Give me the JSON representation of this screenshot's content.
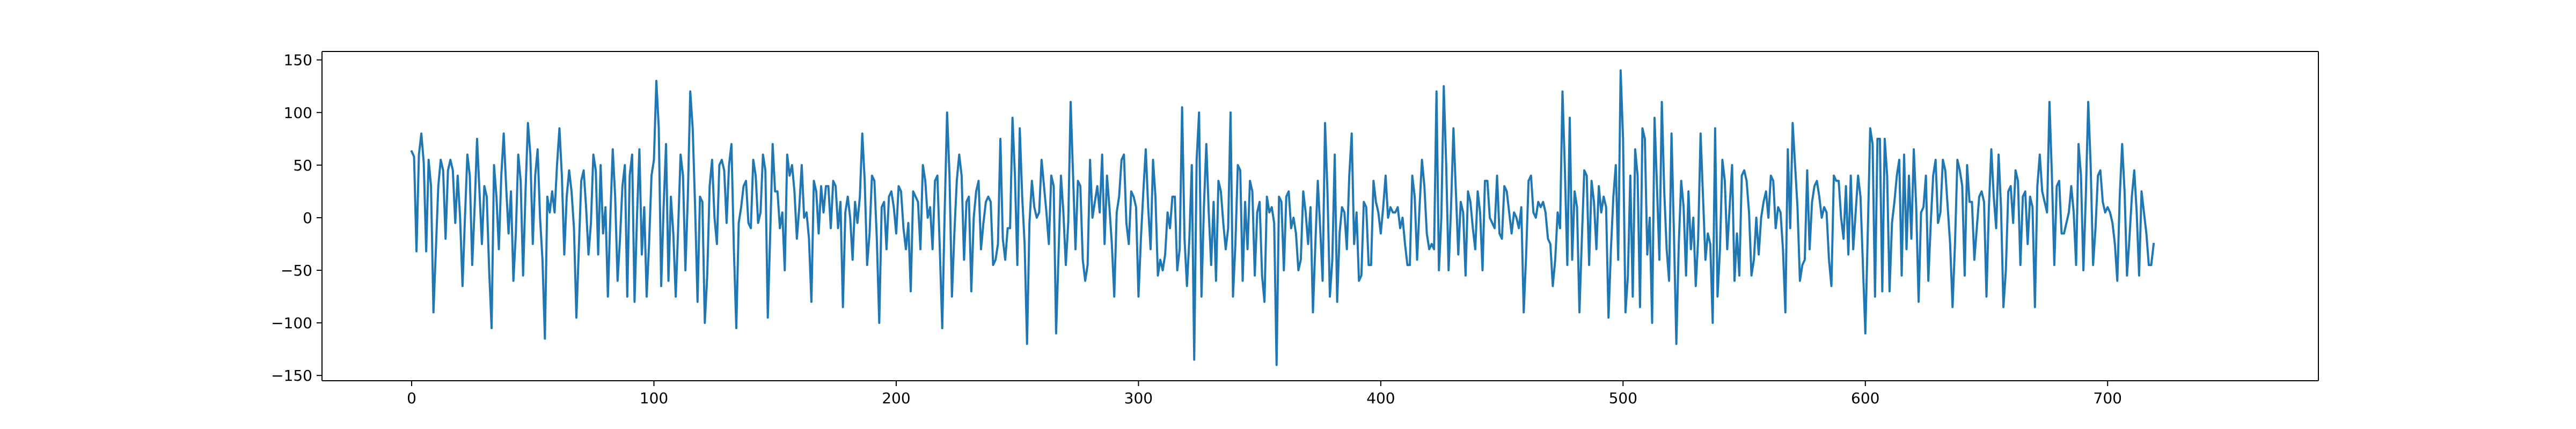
{
  "chart_data": {
    "type": "line",
    "title": "",
    "xlabel": "",
    "ylabel": "",
    "xlim": [
      -37,
      787
    ],
    "ylim": [
      -155,
      158
    ],
    "x_ticks": [
      0,
      100,
      200,
      300,
      400,
      500,
      600,
      700
    ],
    "x_tick_labels": [
      "0",
      "100",
      "200",
      "300",
      "400",
      "500",
      "600",
      "700"
    ],
    "y_ticks": [
      -150,
      -100,
      -50,
      0,
      50,
      100,
      150
    ],
    "y_tick_labels": [
      "−150",
      "−100",
      "−50",
      "0",
      "50",
      "100",
      "150"
    ],
    "grid": false,
    "legend": "none",
    "series": [
      {
        "color": "#1f77b4",
        "x_start": 0,
        "x_step": 1,
        "y": [
          63,
          58,
          -32,
          60,
          80,
          52,
          -32,
          55,
          30,
          -90,
          -30,
          30,
          55,
          45,
          -20,
          45,
          55,
          45,
          -5,
          40,
          0,
          -65,
          0,
          60,
          40,
          -45,
          10,
          75,
          25,
          -25,
          30,
          20,
          -50,
          -105,
          50,
          20,
          -30,
          40,
          80,
          30,
          -15,
          25,
          -60,
          -15,
          60,
          35,
          -55,
          25,
          90,
          60,
          -25,
          40,
          65,
          0,
          -40,
          -115,
          20,
          5,
          25,
          5,
          50,
          85,
          40,
          -35,
          20,
          45,
          25,
          -10,
          -95,
          -30,
          35,
          45,
          10,
          -35,
          -5,
          60,
          45,
          -35,
          50,
          -15,
          10,
          -75,
          0,
          65,
          20,
          -60,
          -20,
          30,
          50,
          -75,
          40,
          60,
          -80,
          0,
          65,
          -35,
          10,
          -75,
          -25,
          40,
          55,
          130,
          85,
          -65,
          10,
          70,
          -60,
          20,
          -15,
          -75,
          -10,
          60,
          40,
          -50,
          20,
          120,
          85,
          10,
          -80,
          20,
          15,
          -100,
          -55,
          30,
          55,
          0,
          -25,
          50,
          55,
          45,
          -5,
          50,
          70,
          -30,
          -105,
          -5,
          10,
          30,
          35,
          -5,
          -10,
          55,
          40,
          -5,
          5,
          60,
          45,
          -95,
          -15,
          70,
          25,
          25,
          -10,
          5,
          -50,
          60,
          40,
          50,
          25,
          -20,
          10,
          50,
          0,
          5,
          -20,
          -80,
          35,
          25,
          -15,
          30,
          5,
          30,
          30,
          -10,
          35,
          30,
          -10,
          15,
          -85,
          5,
          20,
          0,
          -40,
          15,
          -5,
          20,
          80,
          35,
          -45,
          -15,
          40,
          35,
          -20,
          -100,
          10,
          15,
          -30,
          20,
          25,
          10,
          -15,
          30,
          25,
          -10,
          -30,
          -5,
          -70,
          25,
          20,
          15,
          -30,
          50,
          35,
          0,
          10,
          -30,
          35,
          40,
          -30,
          -105,
          5,
          100,
          40,
          -75,
          -15,
          35,
          60,
          40,
          -40,
          15,
          20,
          -70,
          0,
          25,
          35,
          -30,
          -5,
          15,
          20,
          15,
          -45,
          -40,
          -25,
          75,
          -20,
          -40,
          -10,
          -10,
          95,
          40,
          -45,
          85,
          20,
          -25,
          -120,
          -5,
          35,
          10,
          0,
          5,
          55,
          30,
          5,
          -25,
          40,
          30,
          -110,
          -35,
          40,
          5,
          -45,
          -5,
          110,
          40,
          -30,
          35,
          30,
          -40,
          -60,
          -45,
          55,
          0,
          15,
          30,
          5,
          60,
          -25,
          40,
          10,
          -25,
          -75,
          5,
          20,
          55,
          60,
          -5,
          -25,
          25,
          20,
          10,
          -75,
          -20,
          25,
          65,
          10,
          -30,
          55,
          20,
          -55,
          -40,
          -50,
          -35,
          5,
          -10,
          20,
          20,
          -50,
          -30,
          105,
          -20,
          -65,
          -20,
          50,
          -135,
          55,
          100,
          -75,
          10,
          70,
          5,
          -45,
          15,
          -60,
          35,
          25,
          -5,
          -30,
          -10,
          100,
          -75,
          -25,
          50,
          45,
          -60,
          15,
          -30,
          35,
          25,
          -55,
          5,
          15,
          -55,
          -80,
          20,
          5,
          10,
          -5,
          -140,
          20,
          15,
          -50,
          20,
          25,
          -10,
          0,
          -15,
          -50,
          -40,
          25,
          5,
          -25,
          10,
          -90,
          -25,
          35,
          -10,
          -60,
          90,
          25,
          -75,
          -40,
          60,
          -80,
          -15,
          10,
          5,
          -30,
          40,
          80,
          -25,
          5,
          -60,
          -55,
          15,
          10,
          -45,
          -45,
          35,
          15,
          5,
          -15,
          10,
          40,
          0,
          10,
          5,
          5,
          10,
          -10,
          0,
          -25,
          -45,
          -45,
          40,
          20,
          -40,
          10,
          55,
          30,
          -15,
          -30,
          -25,
          -30,
          120,
          -50,
          0,
          125,
          50,
          -50,
          10,
          85,
          25,
          -35,
          15,
          5,
          -55,
          25,
          15,
          -10,
          -30,
          25,
          5,
          -50,
          35,
          35,
          0,
          -5,
          -10,
          40,
          -15,
          -20,
          30,
          25,
          5,
          -15,
          5,
          0,
          -10,
          10,
          -90,
          -35,
          35,
          40,
          5,
          0,
          15,
          10,
          15,
          5,
          -20,
          -25,
          -65,
          -40,
          5,
          -10,
          120,
          45,
          -45,
          95,
          -40,
          25,
          10,
          -90,
          -20,
          45,
          40,
          -45,
          35,
          15,
          -30,
          30,
          5,
          20,
          10,
          -95,
          -30,
          20,
          50,
          -40,
          140,
          75,
          -90,
          -55,
          40,
          -75,
          65,
          40,
          -85,
          85,
          75,
          -35,
          0,
          -100,
          95,
          30,
          -40,
          110,
          25,
          -30,
          -60,
          80,
          -15,
          -120,
          -25,
          35,
          10,
          -55,
          25,
          -30,
          0,
          -65,
          -20,
          80,
          20,
          -40,
          -15,
          -25,
          -100,
          85,
          -75,
          -30,
          55,
          35,
          -30,
          10,
          50,
          -60,
          -15,
          -55,
          40,
          45,
          35,
          5,
          -55,
          -40,
          0,
          -35,
          0,
          15,
          25,
          0,
          40,
          35,
          -10,
          10,
          5,
          -30,
          -90,
          65,
          -10,
          90,
          50,
          10,
          -60,
          -45,
          -40,
          45,
          -30,
          15,
          30,
          35,
          20,
          0,
          10,
          5,
          -40,
          -65,
          40,
          35,
          35,
          0,
          -20,
          30,
          -35,
          40,
          -30,
          5,
          40,
          20,
          -45,
          -110,
          -15,
          85,
          70,
          -75,
          75,
          75,
          -70,
          75,
          40,
          -70,
          -5,
          15,
          40,
          55,
          -55,
          60,
          -30,
          40,
          -20,
          65,
          10,
          -80,
          5,
          10,
          40,
          -60,
          -5,
          40,
          55,
          -5,
          5,
          55,
          45,
          10,
          -25,
          -85,
          -25,
          55,
          45,
          30,
          -55,
          50,
          15,
          15,
          -40,
          -10,
          20,
          25,
          15,
          -75,
          10,
          65,
          20,
          -10,
          60,
          10,
          -85,
          -50,
          25,
          30,
          -5,
          45,
          35,
          -45,
          20,
          25,
          -25,
          20,
          10,
          -85,
          30,
          60,
          25,
          15,
          5,
          110,
          40,
          -45,
          30,
          35,
          -15,
          -15,
          -5,
          5,
          30,
          5,
          -45,
          70,
          40,
          -50,
          20,
          110,
          50,
          -45,
          -10,
          40,
          45,
          15,
          5,
          10,
          5,
          -5,
          -25,
          -60,
          20,
          70,
          25,
          -55,
          -20,
          20,
          45,
          5,
          -55,
          25,
          5,
          -15,
          -45,
          -45,
          -25
        ]
      }
    ]
  }
}
